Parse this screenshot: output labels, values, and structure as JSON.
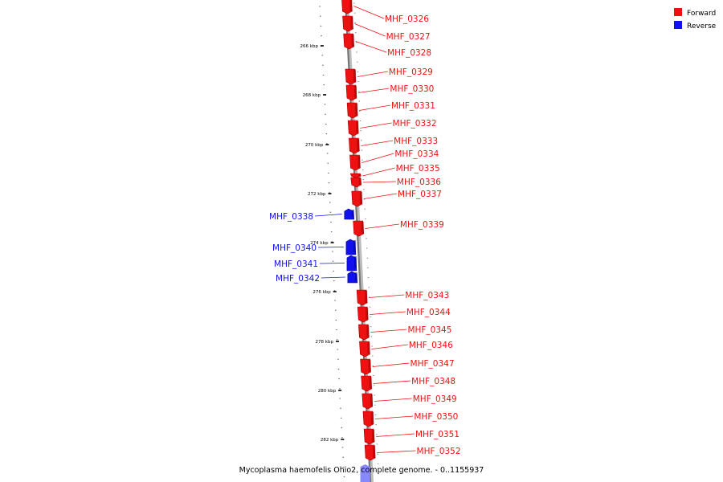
{
  "caption": "Mycoplasma haemofelis Ohio2, complete genome. - 0..1155937",
  "legend": [
    {
      "label": "Forward",
      "color": "#ee1111"
    },
    {
      "label": "Reverse",
      "color": "#1111ee"
    }
  ],
  "ticks": [
    "266 kbp",
    "268 kbp",
    "270 kbp",
    "272 kbp",
    "274 kbp",
    "276 kbp",
    "278 kbp",
    "280 kbp",
    "282 kbp"
  ],
  "genes": [
    {
      "name": "MHF_0326",
      "strand": "forward"
    },
    {
      "name": "MHF_0327",
      "strand": "forward"
    },
    {
      "name": "MHF_0328",
      "strand": "forward"
    },
    {
      "name": "MHF_0329",
      "strand": "forward"
    },
    {
      "name": "MHF_0330",
      "strand": "forward"
    },
    {
      "name": "MHF_0331",
      "strand": "forward"
    },
    {
      "name": "MHF_0332",
      "strand": "forward"
    },
    {
      "name": "MHF_0333",
      "strand": "forward"
    },
    {
      "name": "MHF_0334",
      "strand": "forward"
    },
    {
      "name": "MHF_0335",
      "strand": "forward"
    },
    {
      "name": "MHF_0336",
      "strand": "forward"
    },
    {
      "name": "MHF_0337",
      "strand": "forward"
    },
    {
      "name": "MHF_0338",
      "strand": "reverse"
    },
    {
      "name": "MHF_0339",
      "strand": "forward"
    },
    {
      "name": "MHF_0340",
      "strand": "reverse"
    },
    {
      "name": "MHF_0341",
      "strand": "reverse"
    },
    {
      "name": "MHF_0342",
      "strand": "reverse"
    },
    {
      "name": "MHF_0343",
      "strand": "forward"
    },
    {
      "name": "MHF_0344",
      "strand": "forward"
    },
    {
      "name": "MHF_0345",
      "strand": "forward"
    },
    {
      "name": "MHF_0346",
      "strand": "forward"
    },
    {
      "name": "MHF_0347",
      "strand": "forward"
    },
    {
      "name": "MHF_0348",
      "strand": "forward"
    },
    {
      "name": "MHF_0349",
      "strand": "forward"
    },
    {
      "name": "MHF_0350",
      "strand": "forward"
    },
    {
      "name": "MHF_0351",
      "strand": "forward"
    },
    {
      "name": "MHF_0352",
      "strand": "forward"
    }
  ]
}
